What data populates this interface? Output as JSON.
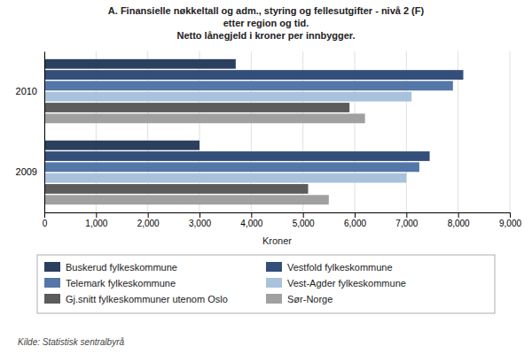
{
  "chart_data": {
    "type": "bar",
    "orientation": "horizontal",
    "title": "A. Finansielle nøkkeltall og adm., styring og fellesutgifter - nivå 2 (F)\netter region og tid.\nNetto lånegjeld i kroner per innbygger.",
    "x_label": "Kroner",
    "categories": [
      "2010",
      "2009"
    ],
    "series": [
      {
        "name": "Buskerud fylkeskommune",
        "color": "#2B3F5E",
        "values": [
          3700,
          3000
        ]
      },
      {
        "name": "Vestfold fylkeskommune",
        "color": "#344E7A",
        "values": [
          8100,
          7450
        ]
      },
      {
        "name": "Telemark fylkeskommune",
        "color": "#5577A8",
        "values": [
          7900,
          7250
        ]
      },
      {
        "name": "Vest-Agder fylkeskommune",
        "color": "#A8C2DC",
        "values": [
          7100,
          7000
        ]
      },
      {
        "name": "Gj.snitt fylkeskommuner utenom Oslo",
        "color": "#5C5C5C",
        "values": [
          5900,
          5100
        ]
      },
      {
        "name": "Sør-Norge",
        "color": "#A0A0A0",
        "values": [
          6200,
          5500
        ]
      }
    ],
    "xlim": [
      0,
      9000
    ],
    "xticks": [
      0,
      {
        "value": 1000,
        "label": "1,000"
      },
      {
        "value": 2000,
        "label": "2,000"
      },
      {
        "value": 3000,
        "label": "3,000"
      },
      {
        "value": 4000,
        "label": "4,000"
      },
      {
        "value": 5000,
        "label": "5,000"
      },
      {
        "value": 6000,
        "label": "6,000"
      },
      {
        "value": 7000,
        "label": "7,000"
      },
      {
        "value": 8000,
        "label": "8,000"
      },
      {
        "value": 9000,
        "label": "9,000"
      }
    ],
    "grid": true,
    "legend": "bottom",
    "annotations": [
      "Kilde: Statistisk sentralbyrå"
    ]
  }
}
